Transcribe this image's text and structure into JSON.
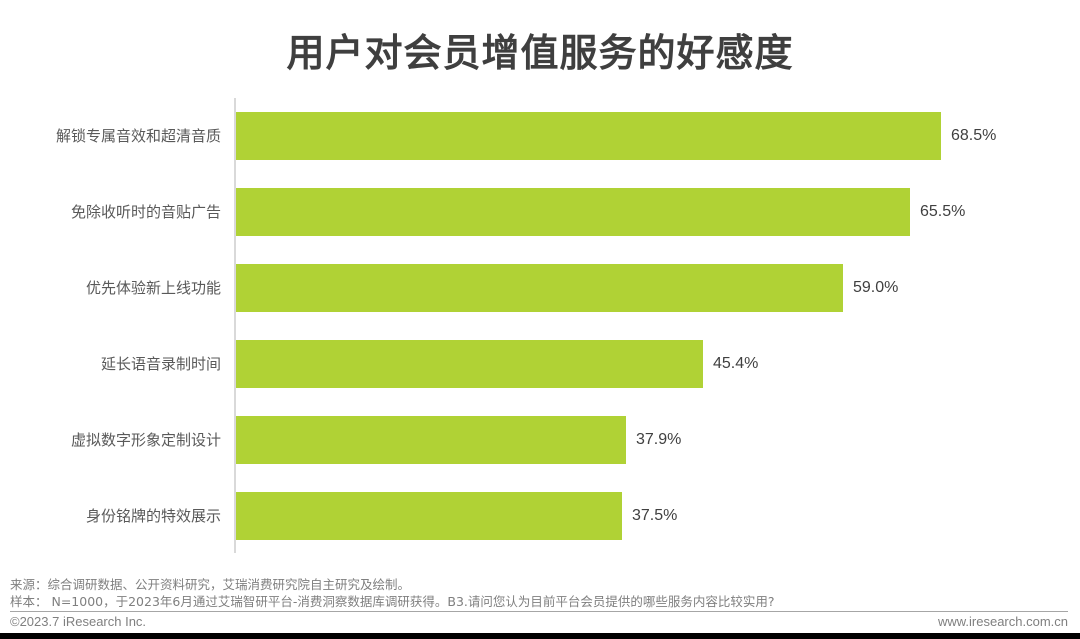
{
  "chart_data": {
    "type": "bar",
    "orientation": "horizontal",
    "title": "用户对会员增值服务的好感度",
    "categories": [
      "解锁专属音效和超清音质",
      "免除收听时的音贴广告",
      "优先体验新上线功能",
      "延长语音录制时间",
      "虚拟数字形象定制设计",
      "身份铭牌的特效展示"
    ],
    "values": [
      68.5,
      65.5,
      59.0,
      45.4,
      37.9,
      37.5
    ],
    "value_labels": [
      "68.5%",
      "65.5%",
      "59.0%",
      "45.4%",
      "37.9%",
      "37.5%"
    ],
    "unit": "%",
    "xlabel": "",
    "ylabel": "",
    "grid": false,
    "legend": null,
    "bar_color": "#b0d235"
  },
  "footer": {
    "source": "来源：综合调研数据、公开资料研究，艾瑞消费研究院自主研究及绘制。",
    "sample": "样本： N=1000，于2023年6月通过艾瑞智研平台-消费洞察数据库调研获得。B3.请问您认为目前平台会员提供的哪些服务内容比较实用?",
    "copyright": "©2023.7 iResearch Inc.",
    "website": "www.iresearch.com.cn"
  }
}
